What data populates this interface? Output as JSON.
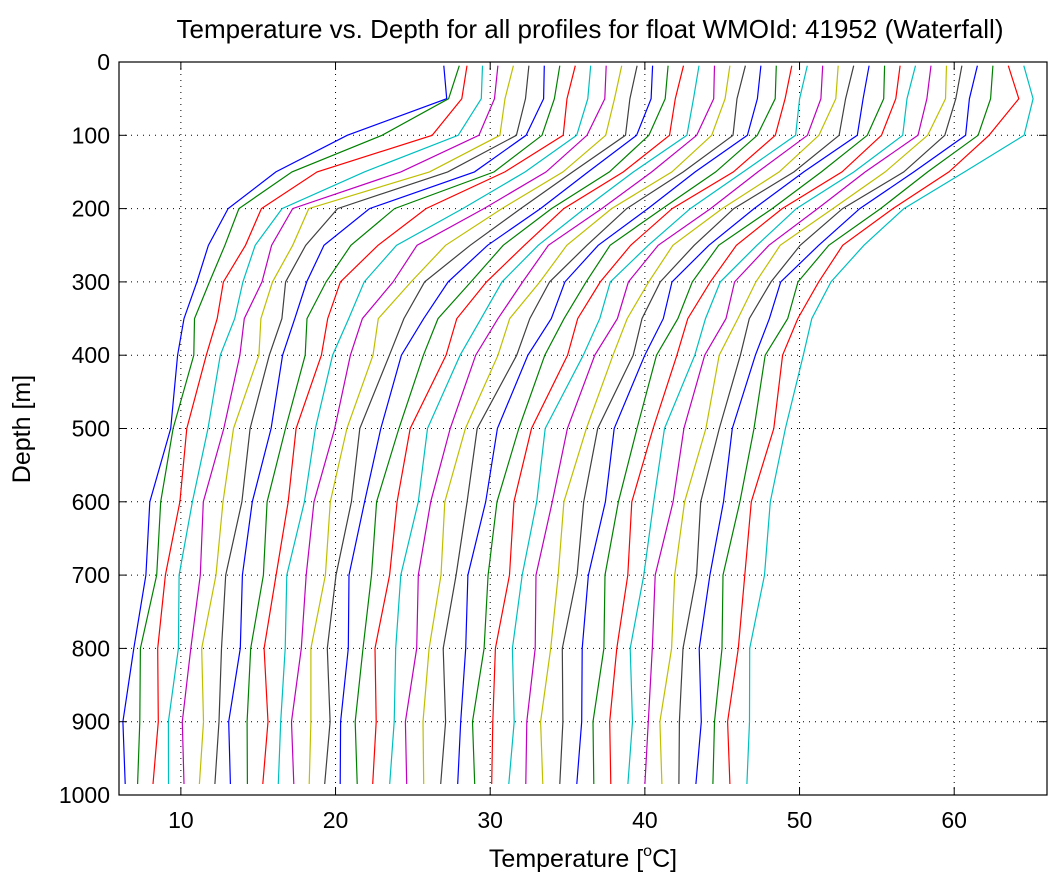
{
  "chart_data": {
    "type": "line",
    "title": "Temperature vs. Depth for all profiles for float WMOId: 41952 (Waterfall)",
    "xlabel_main": "Temperature [",
    "xlabel_sup": "o",
    "xlabel_end": "C]",
    "ylabel": "Depth [m]",
    "xlim": [
      6,
      66
    ],
    "ylim": [
      1000,
      0
    ],
    "y_reversed": true,
    "grid": true,
    "x_ticks": [
      10,
      20,
      30,
      40,
      50,
      60
    ],
    "y_ticks": [
      0,
      100,
      200,
      300,
      400,
      500,
      600,
      700,
      800,
      900,
      1000
    ],
    "x_tick_labels": [
      "10",
      "20",
      "30",
      "40",
      "50",
      "60"
    ],
    "y_tick_labels": [
      "0",
      "100",
      "200",
      "300",
      "400",
      "500",
      "600",
      "700",
      "800",
      "900",
      "1000"
    ],
    "colors": [
      "#0000ff",
      "#008000",
      "#ff0000",
      "#00bfbf",
      "#bf00bf",
      "#bfbf00",
      "#404040"
    ],
    "depths": [
      5,
      50,
      100,
      150,
      200,
      250,
      300,
      350,
      400,
      500,
      600,
      700,
      800,
      900,
      985
    ],
    "series": [
      {
        "values": [
          27,
          27,
          21,
          16,
          13,
          12,
          10.8,
          10.3,
          9.9,
          9.1,
          8.2,
          7.7,
          6.8,
          6.5,
          6.4
        ]
      },
      {
        "values": [
          28,
          27.5,
          23,
          17,
          14,
          12.7,
          11.8,
          11.1,
          10.6,
          9.6,
          8.8,
          8.2,
          7.6,
          7.3,
          7.2
        ]
      },
      {
        "values": [
          28.5,
          28.3,
          26,
          19,
          15.2,
          14,
          13,
          12.2,
          11.6,
          10.6,
          9.7,
          9.1,
          8.6,
          8.3,
          8.2
        ]
      },
      {
        "values": [
          29.5,
          29.2,
          28,
          22,
          16.3,
          15,
          14,
          13.3,
          12.8,
          11.6,
          10.7,
          10.1,
          9.6,
          9.3,
          9.2
        ]
      },
      {
        "values": [
          30.5,
          30.2,
          29.5,
          24,
          17.3,
          16,
          15,
          14.3,
          13.8,
          12.6,
          11.7,
          11.1,
          10.6,
          10.3,
          10.2
        ]
      },
      {
        "values": [
          31.5,
          31.2,
          30.5,
          26,
          18.5,
          17,
          16,
          15.3,
          14.8,
          13.6,
          12.7,
          12.1,
          11.6,
          11.3,
          11.2
        ]
      },
      {
        "values": [
          32.5,
          32.3,
          31.5,
          27.5,
          20,
          18,
          17,
          16.3,
          15.8,
          14.6,
          13.7,
          13.1,
          12.6,
          12.3,
          12.2
        ]
      },
      {
        "values": [
          33.5,
          33.2,
          32.5,
          29,
          22,
          19.5,
          18,
          17.3,
          16.8,
          15.6,
          14.7,
          14.1,
          13.6,
          13.3,
          13.2
        ]
      },
      {
        "values": [
          34.5,
          34.2,
          33.5,
          30,
          24,
          21,
          19.2,
          18.4,
          17.9,
          16.7,
          15.8,
          15.1,
          14.6,
          14.4,
          14.3
        ]
      },
      {
        "values": [
          35.5,
          35.2,
          34.5,
          31,
          26,
          22.5,
          20.5,
          19.5,
          18.9,
          17.7,
          16.8,
          16.1,
          15.6,
          15.4,
          15.3
        ]
      },
      {
        "values": [
          36.5,
          36.2,
          35.5,
          32.5,
          28,
          24,
          22,
          20.6,
          20,
          18.7,
          17.8,
          17.1,
          16.6,
          16.4,
          16.3
        ]
      },
      {
        "values": [
          37.5,
          37.2,
          36.5,
          33.5,
          29.5,
          25.5,
          23.5,
          21.8,
          21.1,
          19.7,
          18.8,
          18.1,
          17.6,
          17.4,
          17.3
        ]
      },
      {
        "values": [
          38.5,
          38.2,
          37.5,
          34.5,
          31,
          27,
          24.8,
          23,
          22.2,
          20.8,
          19.8,
          19.1,
          18.6,
          18.4,
          18.3
        ]
      },
      {
        "values": [
          39.5,
          39.2,
          38.5,
          35.5,
          32,
          28.5,
          26,
          24.3,
          23.4,
          21.8,
          20.8,
          20.1,
          19.6,
          19.4,
          19.3
        ]
      },
      {
        "values": [
          40.5,
          40.2,
          39.5,
          36.5,
          33,
          30,
          27.3,
          25.5,
          24.5,
          22.8,
          21.8,
          21.1,
          20.6,
          20.4,
          20.3
        ]
      },
      {
        "values": [
          41.5,
          41.2,
          40.5,
          37.5,
          34,
          31,
          28.5,
          26.8,
          25.7,
          23.9,
          22.9,
          22.2,
          21.7,
          21.5,
          21.4
        ]
      },
      {
        "values": [
          42.5,
          42.2,
          41.5,
          38.5,
          35,
          32,
          29.8,
          28,
          26.9,
          25,
          24,
          23.3,
          22.8,
          22.5,
          22.4
        ]
      },
      {
        "values": [
          43.5,
          43.2,
          42.5,
          39.5,
          36,
          33,
          31,
          29.2,
          28.1,
          26.1,
          25.1,
          24.4,
          23.9,
          23.6,
          23.5
        ]
      },
      {
        "values": [
          44.5,
          44.2,
          43.5,
          40.5,
          37,
          34,
          32,
          30.4,
          29.3,
          27.2,
          26.2,
          25.5,
          25,
          24.7,
          24.6
        ]
      },
      {
        "values": [
          45.5,
          45.2,
          44.5,
          41.5,
          38,
          35,
          33,
          31.5,
          30.4,
          28.3,
          27.3,
          26.6,
          26.1,
          25.8,
          25.7
        ]
      },
      {
        "values": [
          46.5,
          46.2,
          45.5,
          42.5,
          39,
          36,
          34,
          32.6,
          31.5,
          29.4,
          28.4,
          27.7,
          27.2,
          26.9,
          26.8
        ]
      },
      {
        "values": [
          47.5,
          47.2,
          46.5,
          43.5,
          40,
          37,
          35,
          33.7,
          32.6,
          30.5,
          29.5,
          28.8,
          28.3,
          28,
          27.9
        ]
      },
      {
        "values": [
          48.5,
          48.2,
          47.5,
          44.5,
          41,
          38,
          36,
          34.8,
          33.7,
          31.6,
          30.6,
          29.9,
          29.4,
          29.1,
          29
        ]
      },
      {
        "values": [
          49.5,
          49.2,
          48.5,
          45.5,
          42,
          39,
          37,
          35.9,
          34.8,
          32.7,
          31.7,
          31,
          30.5,
          30.2,
          30.1
        ]
      },
      {
        "values": [
          50.5,
          50.2,
          49.5,
          46.5,
          43,
          40,
          38,
          37,
          35.9,
          33.8,
          32.8,
          32.1,
          31.6,
          31.3,
          31.2
        ]
      },
      {
        "values": [
          51.5,
          51.2,
          50.5,
          47.5,
          44,
          41,
          39,
          38,
          37,
          34.9,
          33.9,
          33.2,
          32.7,
          32.4,
          32.3
        ]
      },
      {
        "values": [
          52.5,
          52.2,
          51.5,
          48.5,
          45,
          42,
          40,
          39,
          38,
          36,
          35,
          34.3,
          33.8,
          33.5,
          33.4
        ]
      },
      {
        "values": [
          53.5,
          53.2,
          52.5,
          49.5,
          46,
          43,
          41,
          40,
          39,
          37.1,
          36.1,
          35.4,
          34.9,
          34.6,
          34.5
        ]
      },
      {
        "values": [
          54.5,
          54.2,
          53.5,
          50.5,
          47,
          44,
          42,
          41,
          40,
          38.2,
          37.2,
          36.5,
          36,
          35.7,
          35.6
        ]
      },
      {
        "values": [
          55.5,
          55.2,
          54.5,
          51.5,
          48,
          45,
          43,
          42,
          41,
          39.3,
          38.3,
          37.6,
          37.1,
          36.8,
          36.7
        ]
      },
      {
        "values": [
          56.5,
          56.2,
          55.5,
          52.5,
          49,
          46,
          44,
          43,
          42,
          40.4,
          39.4,
          38.7,
          38.2,
          37.9,
          37.8
        ]
      },
      {
        "values": [
          57.5,
          57.2,
          56.5,
          53.5,
          50,
          47,
          45,
          44,
          43,
          41.5,
          40.5,
          39.8,
          39.3,
          39,
          38.9
        ]
      },
      {
        "values": [
          58.5,
          58.2,
          57.5,
          54.5,
          51,
          48,
          46,
          45,
          44,
          42.6,
          41.6,
          40.9,
          40.4,
          40.1,
          40
        ]
      },
      {
        "values": [
          59.5,
          59.2,
          58.5,
          55.5,
          52,
          49,
          47,
          46,
          45,
          43.7,
          42.7,
          42,
          41.5,
          41.2,
          41.1
        ]
      },
      {
        "values": [
          60.5,
          60.2,
          59.5,
          56.5,
          53,
          50,
          48,
          47,
          46,
          44.8,
          43.8,
          43.1,
          42.6,
          42.3,
          42.2
        ]
      },
      {
        "values": [
          61.5,
          61.2,
          60.5,
          57.5,
          54,
          51,
          49,
          48,
          47,
          45.9,
          44.9,
          44.2,
          43.7,
          43.4,
          43.3
        ]
      },
      {
        "values": [
          62.5,
          62.2,
          61.5,
          58.5,
          55,
          52,
          50,
          49,
          48,
          47,
          46,
          45.3,
          44.8,
          44.5,
          44.4
        ]
      },
      {
        "values": [
          63.5,
          64,
          62.5,
          59.5,
          56,
          53,
          51,
          50,
          49,
          48.1,
          47.1,
          46.4,
          45.9,
          45.6,
          45.5
        ]
      },
      {
        "values": [
          64.5,
          65.3,
          64.5,
          60.5,
          57,
          54,
          52,
          51,
          50,
          49.2,
          48.2,
          47.5,
          47,
          46.7,
          46.6
        ]
      }
    ]
  }
}
